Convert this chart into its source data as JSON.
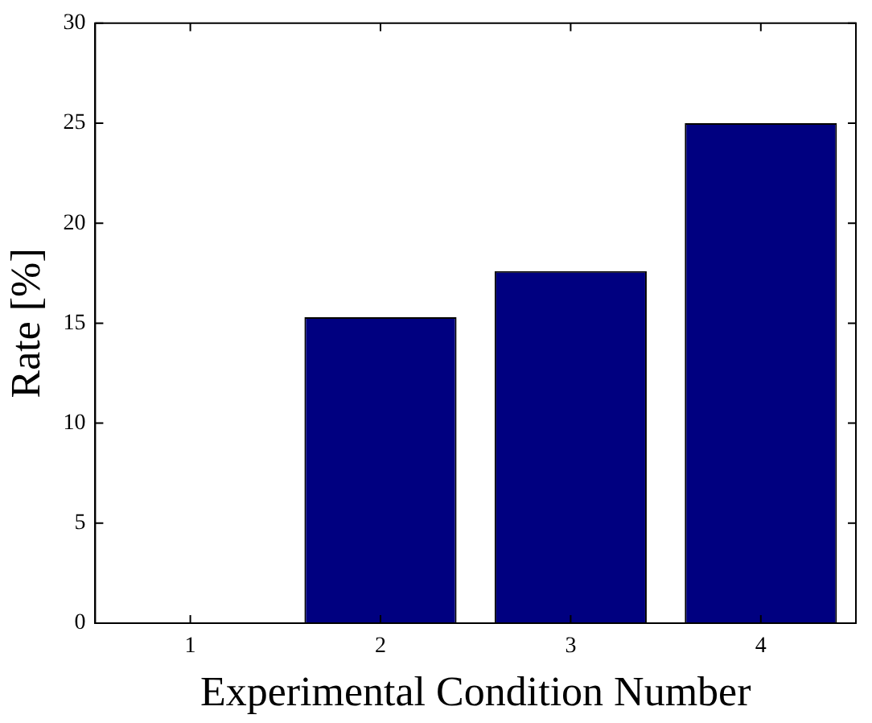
{
  "chart_data": {
    "type": "bar",
    "xlabel": "Experimental Condition Number",
    "ylabel": "Rate [%]",
    "categories": [
      "1",
      "2",
      "3",
      "4"
    ],
    "values": [
      0,
      15.3,
      17.6,
      25
    ],
    "color": "#000080",
    "ylim": [
      0,
      30
    ],
    "yticks": [
      0,
      5,
      10,
      15,
      20,
      25,
      30
    ],
    "grid": false,
    "legend": false
  }
}
